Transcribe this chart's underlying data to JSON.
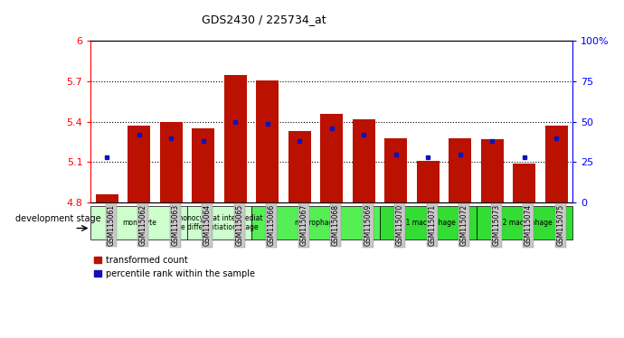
{
  "title": "GDS2430 / 225734_at",
  "samples": [
    "GSM115061",
    "GSM115062",
    "GSM115063",
    "GSM115064",
    "GSM115065",
    "GSM115066",
    "GSM115067",
    "GSM115068",
    "GSM115069",
    "GSM115070",
    "GSM115071",
    "GSM115072",
    "GSM115073",
    "GSM115074",
    "GSM115075"
  ],
  "red_values": [
    4.86,
    5.37,
    5.4,
    5.35,
    5.75,
    5.71,
    5.33,
    5.46,
    5.42,
    5.28,
    5.11,
    5.28,
    5.27,
    5.09,
    5.37
  ],
  "blue_values": [
    28,
    42,
    40,
    38,
    50,
    49,
    38,
    46,
    42,
    30,
    28,
    30,
    38,
    28,
    40
  ],
  "ylim_left": [
    4.8,
    6.0
  ],
  "ylim_right": [
    0,
    100
  ],
  "yticks_left": [
    4.8,
    5.1,
    5.4,
    5.7,
    6.0
  ],
  "ytick_left_labels": [
    "4.8",
    "5.1",
    "5.4",
    "5.7",
    "6"
  ],
  "yticks_right": [
    0,
    25,
    50,
    75,
    100
  ],
  "ytick_right_labels": [
    "0",
    "25",
    "50",
    "75",
    "100%"
  ],
  "grid_values": [
    5.1,
    5.4,
    5.7
  ],
  "bar_color": "#bb1100",
  "dot_color": "#1111bb",
  "base_value": 4.8,
  "group_info": [
    {
      "label": "monocyte",
      "start": 0,
      "end": 2,
      "color": "#ccffcc"
    },
    {
      "label": "monocyte at intermediate\ne differentiation stage",
      "start": 3,
      "end": 4,
      "color": "#ccffcc"
    },
    {
      "label": "macrophage",
      "start": 5,
      "end": 8,
      "color": "#55ee55"
    },
    {
      "label": "M1 macrophage",
      "start": 9,
      "end": 11,
      "color": "#33dd33"
    },
    {
      "label": "M2 macrophage",
      "start": 12,
      "end": 14,
      "color": "#33dd33"
    }
  ],
  "legend_label_red": "transformed count",
  "legend_label_blue": "percentile rank within the sample",
  "dev_stage_label": "development stage",
  "tick_bg_color": "#cccccc"
}
